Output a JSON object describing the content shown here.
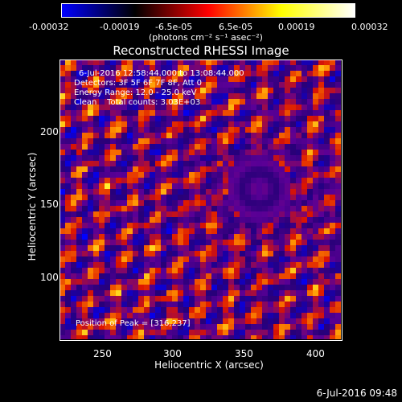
{
  "colorbar": {
    "labels": [
      "-0.00032",
      "-0.00019",
      "-6.5e-05",
      "6.5e-05",
      "0.00019",
      "0.00032"
    ],
    "units": "(photons cm⁻² s⁻¹ asec⁻²)",
    "colors": [
      "#0000ff",
      "#000000",
      "#ff0000",
      "#ffff00",
      "#ffffff"
    ]
  },
  "chart_data": {
    "type": "heatmap",
    "title": "Reconstructed RHESSI Image",
    "xlabel": "Heliocentric X (arcsec)",
    "ylabel": "Heliocentric Y (arcsec)",
    "x_ticks": [
      250,
      300,
      350,
      400
    ],
    "y_ticks": [
      100,
      150,
      200
    ],
    "xlim": [
      222,
      412
    ],
    "ylim": [
      55,
      245
    ],
    "vmin": -0.00032,
    "vmax": 0.00032,
    "peak": [
      316,
      237
    ]
  },
  "annotations": {
    "time_range": "6-Jul-2016 12:58:44.000 to 13:08:44.000",
    "detectors": "Detectors: 3F 5F 6F 7F 8F, Att 0",
    "energy": "Energy Range: 12.0 - 25.0 keV",
    "clean": "Clean    Total counts: 3.03E+03",
    "peak_text": "Position of Peak = [316,237]"
  },
  "footer": "6-Jul-2016 09:48"
}
